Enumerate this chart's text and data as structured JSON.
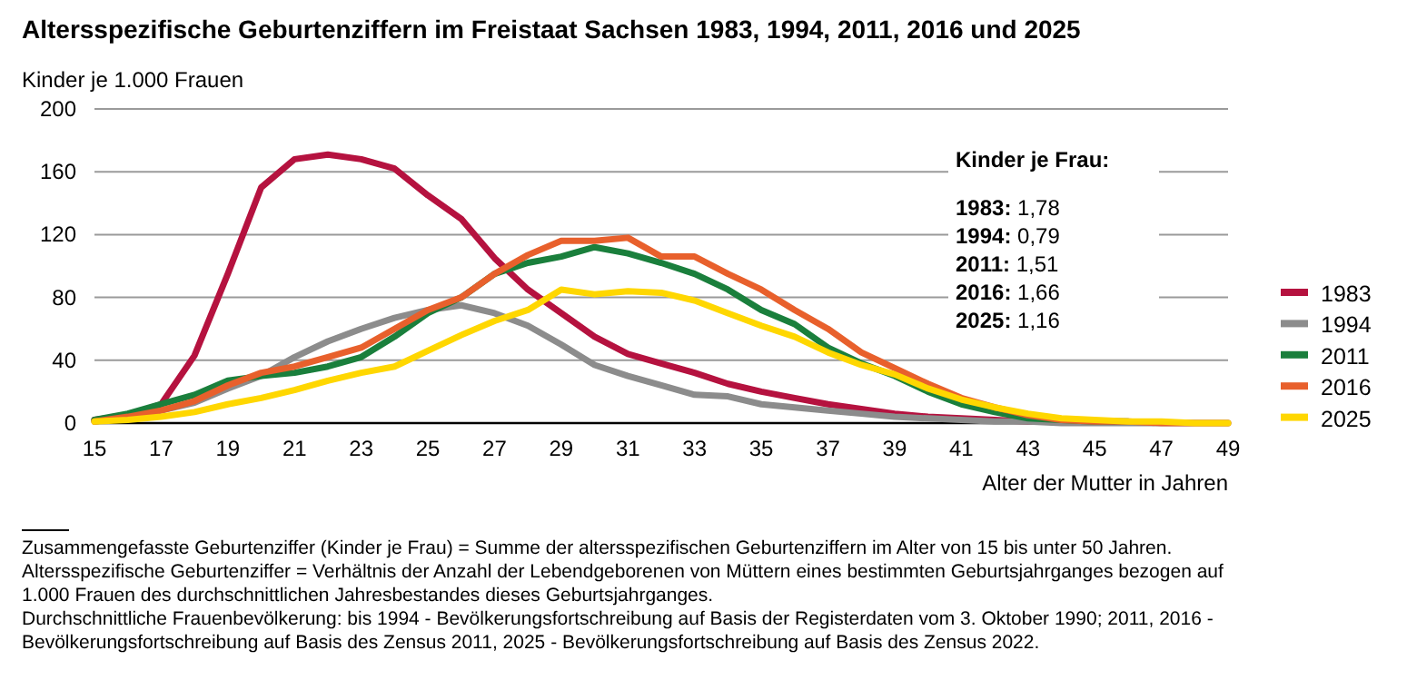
{
  "chart_data": {
    "type": "line",
    "title": "Altersspezifische Geburtenziffern im Freistaat Sachsen 1983, 1994, 2011, 2016 und 2025",
    "ylabel": "Kinder je 1.000 Frauen",
    "xlabel": "Alter der Mutter in Jahren",
    "x": [
      15,
      16,
      17,
      18,
      19,
      20,
      21,
      22,
      23,
      24,
      25,
      26,
      27,
      28,
      29,
      30,
      31,
      32,
      33,
      34,
      35,
      36,
      37,
      38,
      39,
      40,
      41,
      42,
      43,
      44,
      45,
      46,
      47,
      48,
      49
    ],
    "series": [
      {
        "name": "1983",
        "color": "#b5123f",
        "values": [
          2,
          5,
          12,
          43,
          95,
          150,
          168,
          171,
          168,
          162,
          145,
          130,
          105,
          85,
          70,
          55,
          44,
          38,
          32,
          25,
          20,
          16,
          12,
          9,
          6,
          4,
          3,
          2,
          1,
          1,
          null,
          null,
          null,
          null,
          null
        ]
      },
      {
        "name": "1994",
        "color": "#8c8c8c",
        "values": [
          1,
          4,
          8,
          13,
          22,
          30,
          42,
          52,
          60,
          67,
          72,
          75,
          70,
          62,
          50,
          37,
          30,
          24,
          18,
          17,
          12,
          10,
          8,
          6,
          4,
          3,
          2,
          1,
          1,
          0,
          0,
          0,
          0,
          0,
          0
        ]
      },
      {
        "name": "2011",
        "color": "#1a7f3c",
        "values": [
          2,
          6,
          12,
          18,
          27,
          30,
          32,
          36,
          42,
          55,
          70,
          80,
          95,
          102,
          106,
          112,
          108,
          102,
          95,
          85,
          72,
          63,
          48,
          38,
          30,
          20,
          12,
          7,
          3,
          2,
          1,
          1,
          null,
          null,
          null
        ]
      },
      {
        "name": "2016",
        "color": "#e8602c",
        "values": [
          1,
          4,
          8,
          14,
          24,
          32,
          36,
          42,
          48,
          60,
          72,
          80,
          95,
          107,
          116,
          116,
          118,
          106,
          106,
          95,
          85,
          72,
          60,
          45,
          35,
          25,
          16,
          10,
          5,
          2,
          1,
          1,
          0,
          0,
          0
        ]
      },
      {
        "name": "2025",
        "color": "#ffd700",
        "values": [
          1,
          2,
          4,
          7,
          12,
          16,
          21,
          27,
          32,
          36,
          46,
          56,
          65,
          72,
          85,
          82,
          84,
          83,
          78,
          70,
          62,
          55,
          45,
          37,
          31,
          22,
          15,
          10,
          6,
          3,
          2,
          1,
          1,
          0,
          0
        ]
      }
    ],
    "xlim": [
      15,
      49
    ],
    "xticks": [
      15,
      17,
      19,
      21,
      23,
      25,
      27,
      29,
      31,
      33,
      35,
      37,
      39,
      41,
      43,
      45,
      47,
      49
    ],
    "ylim": [
      0,
      200
    ],
    "yticks": [
      0,
      40,
      80,
      120,
      160,
      200
    ],
    "grid": "y",
    "legend": "right",
    "marker": "none",
    "line_style": "solid",
    "annotations": [
      "Kinder je Frau:",
      "1983: 1,78",
      "1994: 0,79",
      "2011: 1,51",
      "2016: 1,66",
      "2025: 1,16",
      "Zusammengefasste Geburtenziffer (Kinder je Frau) = Summe der altersspezifischen Geburtenziffern im Alter von 15 bis unter 50 Jahren.",
      "Altersspezifische Geburtenziffer = Verhältnis der Anzahl der Lebendgeborenen von Müttern eines bestimmten Geburtsjahrganges bezogen auf",
      "1.000 Frauen des durchschnittlichen Jahresbestandes dieses Geburtsjahrganges.",
      "Durchschnittliche Frauenbevölkerung: bis 1994 - Bevölkerungsfortschreibung auf Basis der Registerdaten vom 3. Oktober 1990; 2011, 2016 -",
      "Bevölkerungsfortschreibung auf Basis des Zensus 2011, 2025 - Bevölkerungsfortschreibung auf Basis des Zensus 2022."
    ]
  }
}
